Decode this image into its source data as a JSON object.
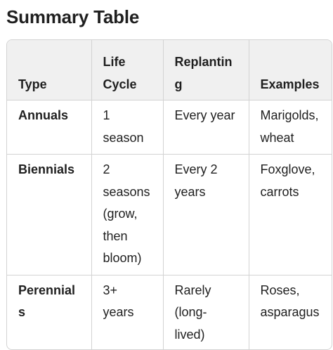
{
  "title": "Summary Table",
  "table": {
    "headers": [
      "Type",
      "Life Cycle",
      "Replanting",
      "Examples"
    ],
    "rows": [
      [
        "Annuals",
        "1 season",
        "Every year",
        "Marigolds, wheat"
      ],
      [
        "Biennials",
        "2 seasons (grow, then bloom)",
        "Every 2 years",
        "Foxglove, carrots"
      ],
      [
        "Perennials",
        "3+ years",
        "Rarely (long-lived)",
        "Roses, asparagus"
      ]
    ]
  },
  "colors": {
    "header_bg": "#f0f0f0",
    "border": "#d3d3d3",
    "text": "#1f1f1f"
  }
}
